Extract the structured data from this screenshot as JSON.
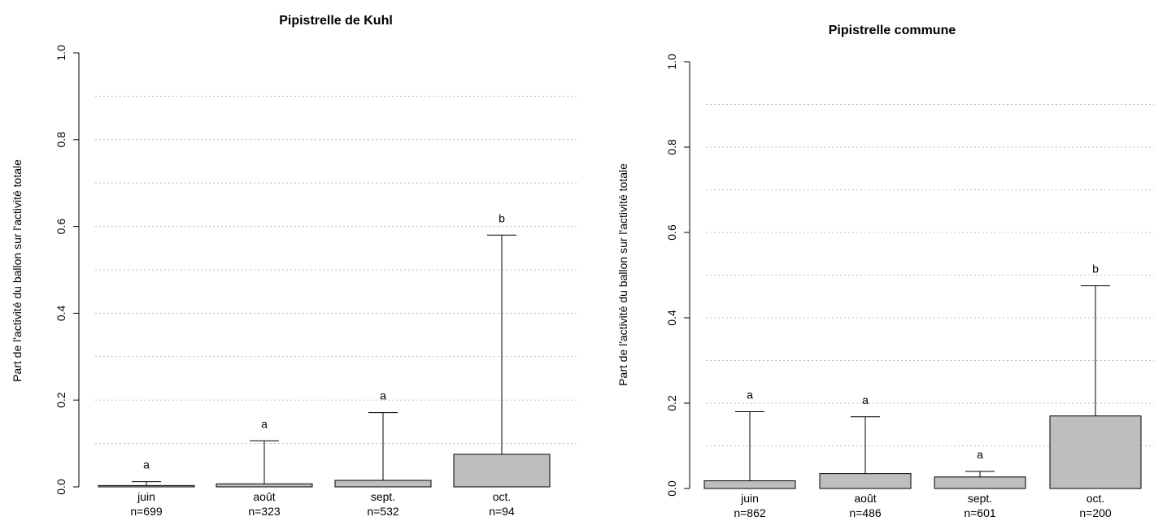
{
  "chart_data": [
    {
      "type": "bar",
      "title": "Pipistrelle de Kuhl",
      "ylabel": "Part de l'activité du ballon sur l'activité totale",
      "xlabel": "",
      "ylim": [
        0,
        1
      ],
      "yticks": [
        "0.0",
        "0.2",
        "0.4",
        "0.6",
        "0.8",
        "1.0"
      ],
      "grid": true,
      "categories": [
        "juin",
        "août",
        "sept.",
        "oct."
      ],
      "counts": [
        "n=699",
        "n=323",
        "n=532",
        "n=94"
      ],
      "values": [
        0.003,
        0.007,
        0.015,
        0.075
      ],
      "error_upper": [
        0.012,
        0.106,
        0.171,
        0.58
      ],
      "group_letters": [
        "a",
        "a",
        "a",
        "b"
      ],
      "bar_color": "#bebebe"
    },
    {
      "type": "bar",
      "title": "Pipistrelle commune",
      "ylabel": "Part de l'activité du ballon sur l'activité totale",
      "xlabel": "",
      "ylim": [
        0,
        1
      ],
      "yticks": [
        "0.0",
        "0.2",
        "0.4",
        "0.6",
        "0.8",
        "1.0"
      ],
      "grid": true,
      "categories": [
        "juin",
        "août",
        "sept.",
        "oct."
      ],
      "counts": [
        "n=862",
        "n=486",
        "n=601",
        "n=200"
      ],
      "values": [
        0.018,
        0.035,
        0.027,
        0.17
      ],
      "error_upper": [
        0.18,
        0.168,
        0.04,
        0.475
      ],
      "group_letters": [
        "a",
        "a",
        "a",
        "b"
      ],
      "bar_color": "#bebebe"
    }
  ]
}
